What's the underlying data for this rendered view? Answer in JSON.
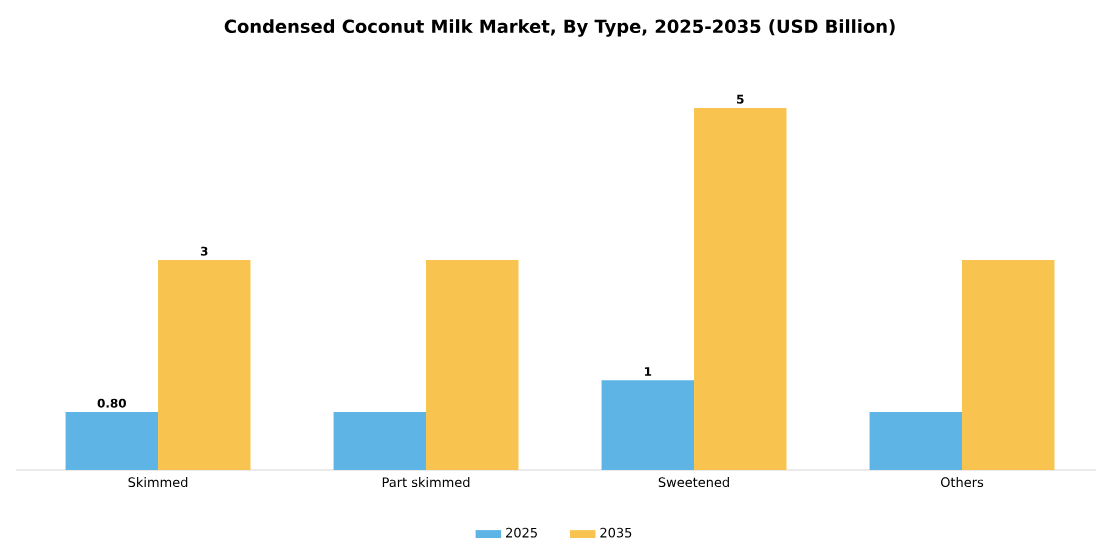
{
  "chart_data": {
    "type": "bar",
    "title": "Condensed Coconut Milk Market, By Type, 2025-2035 (USD Billion)",
    "categories": [
      "Skimmed",
      "Part skimmed",
      "Sweetened",
      "Others"
    ],
    "series": [
      {
        "name": "2025",
        "color": "#5db4e5",
        "values": [
          0.8,
          0.8,
          1.24,
          0.8
        ],
        "value_labels": [
          "0.80",
          null,
          "1",
          null
        ]
      },
      {
        "name": "2035",
        "color": "#f8c44f",
        "values": [
          2.9,
          2.9,
          5.0,
          2.9
        ],
        "value_labels": [
          "3",
          null,
          "5",
          null
        ]
      }
    ],
    "legend": "bottom"
  }
}
